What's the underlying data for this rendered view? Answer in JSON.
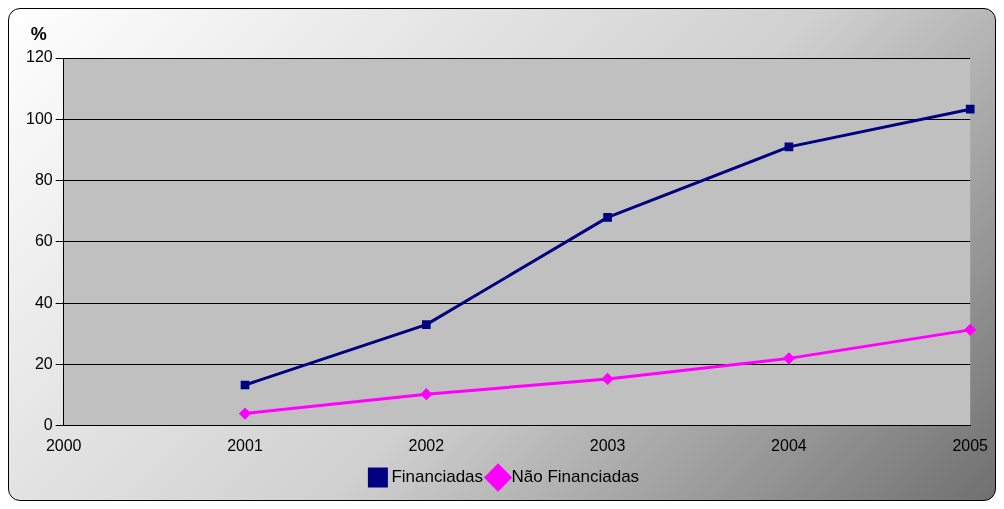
{
  "chart_data": {
    "type": "line",
    "ylabel": "%",
    "categories": [
      "2000",
      "2001",
      "2002",
      "2003",
      "2004",
      "2005"
    ],
    "series": [
      {
        "name": "Financiadas",
        "color": "#000080",
        "marker": "square",
        "values": [
          null,
          13.3,
          33,
          68,
          91,
          103.3
        ]
      },
      {
        "name": "Não Financiadas",
        "color": "#ff00ff",
        "marker": "diamond",
        "values": [
          null,
          4,
          10.3,
          15.3,
          22,
          31.3
        ]
      }
    ],
    "ylim": [
      0,
      120
    ],
    "yticks": [
      0,
      20,
      40,
      60,
      80,
      100,
      120
    ],
    "grid": "y",
    "legend": "bottom",
    "line_style": "solid"
  }
}
